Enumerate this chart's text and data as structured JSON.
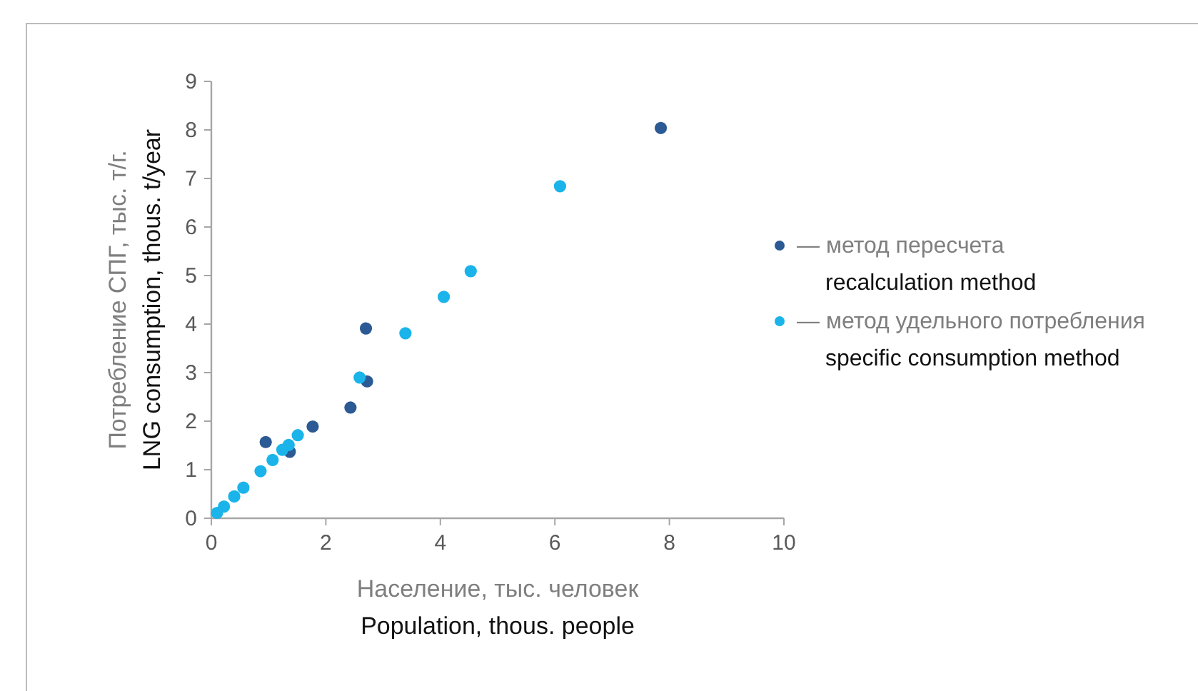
{
  "chart_data": {
    "type": "scatter",
    "xlabel": "Население, тыс. человек\nPopulation, thous. people",
    "ylabel": "Потребление СПГ, тыс. т/г.\nLNG consumption, thous. t/year",
    "xlim": [
      0,
      10
    ],
    "xticks": [
      0,
      2,
      4,
      6,
      8,
      10
    ],
    "ylim": [
      0,
      9
    ],
    "yticks": [
      0,
      1,
      2,
      3,
      4,
      5,
      6,
      7,
      8,
      9
    ],
    "grid": false,
    "legend": "right",
    "marker": "circle",
    "series": [
      {
        "name": "— метод пересчета\nrecalculation method",
        "color": "#2b5a94",
        "x": [
          7.85,
          2.7,
          2.72,
          2.43,
          1.77,
          0.95,
          1.37
        ],
        "values": [
          8.04,
          3.91,
          2.82,
          2.28,
          1.89,
          1.57,
          1.37
        ]
      },
      {
        "name": "— метод удельного потребления\nspecific consumption method",
        "color": "#1ab4ea",
        "x": [
          6.09,
          4.53,
          4.06,
          3.39,
          2.59,
          1.51,
          1.35,
          1.24,
          1.07,
          0.86,
          0.56,
          0.4,
          0.22,
          0.1
        ],
        "values": [
          6.84,
          5.09,
          4.56,
          3.81,
          2.9,
          1.71,
          1.51,
          1.41,
          1.2,
          0.97,
          0.63,
          0.45,
          0.24,
          0.11
        ]
      }
    ]
  }
}
